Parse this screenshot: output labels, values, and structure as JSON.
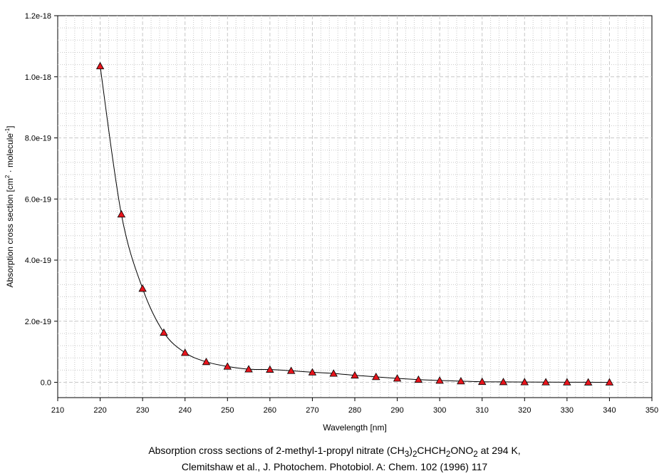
{
  "chart_data": {
    "type": "line",
    "title": "",
    "xlabel": "Wavelength [nm]",
    "ylabel": {
      "prefix": "Absorption cross section [cm",
      "sup1": "2",
      "middle": " · molecule",
      "sup2": "-1",
      "suffix": "]"
    },
    "xlim": [
      210,
      350
    ],
    "ylim": [
      -5e-20,
      1.2e-18
    ],
    "xticks": [
      210,
      220,
      230,
      240,
      250,
      260,
      270,
      280,
      290,
      300,
      310,
      320,
      330,
      340,
      350
    ],
    "xtick_labels": [
      "210",
      "220",
      "230",
      "240",
      "250",
      "260",
      "270",
      "280",
      "290",
      "300",
      "310",
      "320",
      "330",
      "340",
      "350"
    ],
    "yticks": [
      0,
      2e-19,
      4e-19,
      6e-19,
      8e-19,
      1e-18,
      1.2e-18
    ],
    "ytick_labels": [
      "0.0",
      "2.0e-19",
      "4.0e-19",
      "6.0e-19",
      "8.0e-19",
      "1.0e-18",
      "1.2e-18"
    ],
    "grid": true,
    "marker": "triangle",
    "colors": {
      "marker_fill": "#e8141c",
      "marker_edge": "#000000",
      "line": "#000000",
      "grid": "#c8c8c8"
    },
    "series": [
      {
        "x": [
          220,
          225,
          230,
          235,
          240,
          245,
          250,
          255,
          260,
          265,
          270,
          275,
          280,
          285,
          290,
          295,
          300,
          305,
          310,
          315,
          320,
          325,
          330,
          335,
          340
        ],
        "y": [
          1.035e-18,
          5.5e-19,
          3.07e-19,
          1.63e-19,
          9.7e-20,
          6.7e-20,
          5.2e-20,
          4.3e-20,
          4.2e-20,
          3.8e-20,
          3.3e-20,
          2.9e-20,
          2.3e-20,
          1.8e-20,
          1.3e-20,
          9e-21,
          6e-21,
          4e-21,
          2e-21,
          1.5e-21,
          1e-21,
          7e-22,
          5e-22,
          3e-22,
          2e-22
        ]
      }
    ]
  },
  "caption": {
    "line1_a": "Absorption cross sections of 2-methyl-1-propyl nitrate (CH",
    "line1_sub1": "3",
    "line1_b": ")",
    "line1_sub2": "2",
    "line1_c": "CHCH",
    "line1_sub3": "2",
    "line1_d": "ONO",
    "line1_sub4": "2",
    "line1_e": " at 294 K,",
    "line2": "Clemitshaw et al., J. Photochem. Photobiol. A: Chem. 102 (1996) 117"
  }
}
